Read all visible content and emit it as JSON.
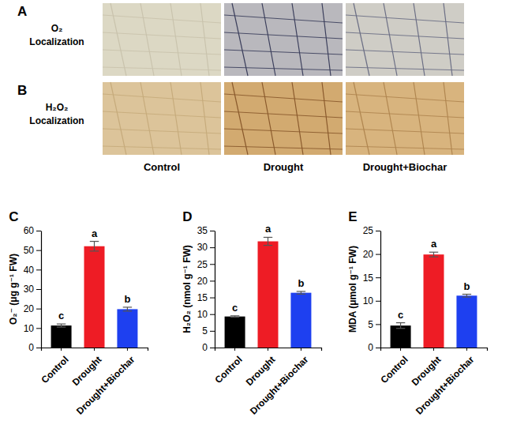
{
  "image_panels": {
    "rows": [
      {
        "letter": "A",
        "label": [
          "O₂",
          "Localization"
        ]
      },
      {
        "letter": "B",
        "label": [
          "H₂O₂",
          "Localization"
        ]
      }
    ],
    "columns": [
      "Control",
      "Drought",
      "Drought+Biochar"
    ]
  },
  "chart_data": [
    {
      "type": "bar",
      "panel": "C",
      "y_label": "O₂⁻ (μg g⁻¹ FW)",
      "categories": [
        "Control",
        "Drought",
        "Drought+Biochar"
      ],
      "values": [
        11.3,
        52,
        19.7
      ],
      "errors": [
        0.8,
        2.5,
        1
      ],
      "annotations": [
        "c",
        "a",
        "b"
      ],
      "colors": [
        "#000000",
        "#ee1c25",
        "#1e40f0"
      ],
      "ylim": [
        0,
        60
      ],
      "yticks": [
        0,
        10,
        20,
        30,
        40,
        50,
        60
      ]
    },
    {
      "type": "bar",
      "panel": "D",
      "y_label": "H₂O₂ (nmol g⁻¹ FW)",
      "categories": [
        "Control",
        "Drought",
        "Drought+Biochar"
      ],
      "values": [
        9.3,
        31.8,
        16.4
      ],
      "errors": [
        0.2,
        1.2,
        0.4
      ],
      "annotations": [
        "c",
        "a",
        "b"
      ],
      "colors": [
        "#000000",
        "#ee1c25",
        "#1e40f0"
      ],
      "ylim": [
        0,
        35
      ],
      "yticks": [
        0,
        5,
        10,
        15,
        20,
        25,
        30,
        35
      ]
    },
    {
      "type": "bar",
      "panel": "E",
      "y_label": "MDA (μmol g⁻¹ FW)",
      "categories": [
        "Control",
        "Drought",
        "Drought+Biochar"
      ],
      "values": [
        4.7,
        19.9,
        11.1
      ],
      "errors": [
        0.6,
        0.5,
        0.3
      ],
      "annotations": [
        "c",
        "a",
        "b"
      ],
      "colors": [
        "#000000",
        "#ee1c25",
        "#1e40f0"
      ],
      "ylim": [
        0,
        25
      ],
      "yticks": [
        0,
        5,
        10,
        15,
        20,
        25
      ]
    }
  ]
}
